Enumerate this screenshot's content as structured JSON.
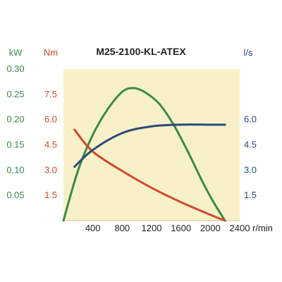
{
  "chart_data": {
    "type": "line",
    "title": "M25-2100-KL-ATEX",
    "grid": false,
    "background_color": "#f8f0c8",
    "x_axis": {
      "unit": "r/min",
      "ticks": [
        400,
        800,
        1200,
        1600,
        2000,
        2400
      ],
      "range": [
        0,
        2400
      ]
    },
    "axes": {
      "power": {
        "unit": "kW",
        "color": "#3a8a4a",
        "range": [
          0,
          0.3
        ],
        "ticks": [
          "0.05",
          "0.10",
          "0.15",
          "0.20",
          "0.25",
          "0.30"
        ]
      },
      "torque": {
        "unit": "Nm",
        "color": "#d04a2a",
        "range": [
          0,
          9
        ],
        "ticks": [
          "1.5",
          "3.0",
          "4.5",
          "6.0",
          "7.5"
        ]
      },
      "flow": {
        "unit": "l/s",
        "color": "#2a4a7a",
        "range": [
          0,
          9
        ],
        "ticks": [
          "1.5",
          "3.0",
          "4.5",
          "6.0"
        ]
      }
    },
    "series": [
      {
        "axis": "power",
        "color": "#3a8a4a",
        "x": [
          0,
          200,
          400,
          600,
          800,
          950,
          1100,
          1300,
          1500,
          1700,
          1900,
          2050,
          2200
        ],
        "y": [
          0,
          0.1,
          0.17,
          0.22,
          0.255,
          0.2625,
          0.255,
          0.232,
          0.19,
          0.135,
          0.075,
          0.035,
          0
        ]
      },
      {
        "axis": "torque",
        "color": "#d04a2a",
        "x": [
          150,
          400,
          800,
          1200,
          1600,
          2000,
          2200
        ],
        "y": [
          5.4,
          4.1,
          2.95,
          1.95,
          1.1,
          0.35,
          0.0
        ]
      },
      {
        "axis": "flow",
        "color": "#2a4a7a",
        "x": [
          150,
          400,
          800,
          1200,
          1600,
          2000,
          2200
        ],
        "y": [
          3.2,
          4.2,
          5.2,
          5.6,
          5.7,
          5.7,
          5.7
        ]
      }
    ]
  }
}
